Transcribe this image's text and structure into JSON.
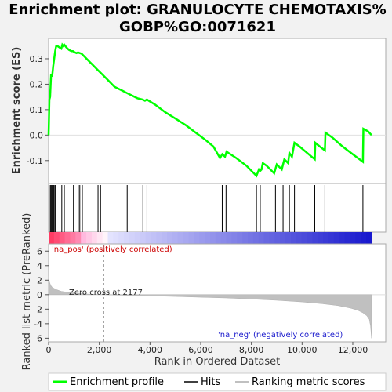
{
  "title_line1": "Enrichment plot: GRANULOCYTE CHEMOTAXIS%",
  "title_line2": "GOBP%GO:0071621",
  "chart_data": {
    "type": "line",
    "es_panel": {
      "ylabel": "Enrichment score (ES)",
      "ylim": [
        -0.19,
        0.38
      ],
      "yticks": [
        -0.1,
        0.0,
        0.1,
        0.2,
        0.3
      ],
      "ytick_labels": [
        "-0.1",
        "0.0",
        "0.1",
        "0.2",
        "0.3"
      ],
      "series_name": "Enrichment profile",
      "color": "#00ff00",
      "x": [
        0,
        30,
        60,
        100,
        140,
        180,
        220,
        260,
        300,
        350,
        420,
        500,
        540,
        580,
        620,
        700,
        800,
        900,
        960,
        1040,
        1100,
        1160,
        1240,
        1300,
        1400,
        1600,
        1800,
        1950,
        2100,
        2300,
        2600,
        2900,
        3100,
        3300,
        3500,
        3700,
        3800,
        3880,
        3950,
        4200,
        4600,
        5000,
        5400,
        5800,
        6200,
        6500,
        6760,
        6850,
        6960,
        7020,
        7100,
        7400,
        7800,
        8200,
        8300,
        8350,
        8400,
        8450,
        8600,
        8800,
        8900,
        9000,
        9200,
        9300,
        9450,
        9500,
        9600,
        9700,
        9900,
        10200,
        10500,
        10520,
        10700,
        10900,
        10920,
        11200,
        11600,
        12000,
        12400,
        12420,
        12600,
        12740
      ],
      "y": [
        0.0,
        0.14,
        0.15,
        0.24,
        0.23,
        0.27,
        0.3,
        0.33,
        0.35,
        0.35,
        0.345,
        0.34,
        0.355,
        0.35,
        0.355,
        0.345,
        0.335,
        0.33,
        0.33,
        0.325,
        0.322,
        0.325,
        0.322,
        0.32,
        0.31,
        0.29,
        0.27,
        0.255,
        0.24,
        0.22,
        0.19,
        0.175,
        0.165,
        0.155,
        0.145,
        0.14,
        0.135,
        0.14,
        0.135,
        0.12,
        0.09,
        0.065,
        0.04,
        0.01,
        -0.02,
        -0.045,
        -0.09,
        -0.075,
        -0.085,
        -0.065,
        -0.07,
        -0.09,
        -0.12,
        -0.16,
        -0.135,
        -0.14,
        -0.135,
        -0.11,
        -0.12,
        -0.14,
        -0.15,
        -0.115,
        -0.135,
        -0.095,
        -0.11,
        -0.07,
        -0.085,
        -0.03,
        -0.045,
        -0.07,
        -0.095,
        -0.03,
        -0.045,
        -0.06,
        0.01,
        -0.01,
        -0.045,
        -0.075,
        -0.105,
        0.025,
        0.015,
        0.0
      ]
    },
    "hits": [
      20,
      70,
      100,
      130,
      160,
      190,
      220,
      260,
      520,
      620,
      980,
      1170,
      1230,
      1330,
      1950,
      2050,
      3100,
      3720,
      3880,
      6850,
      7000,
      8200,
      8350,
      8950,
      9250,
      9500,
      9700,
      10500,
      10900,
      12400
    ],
    "metric_panel": {
      "ylabel": "Ranked list metric (PreRanked)",
      "ylim": [
        -6.5,
        7
      ],
      "yticks": [
        -6,
        -4,
        -2,
        0,
        2,
        4,
        6
      ],
      "ytick_labels": [
        "-6",
        "-4",
        "-2",
        "0",
        "2",
        "4",
        "6"
      ],
      "xlabel": "Rank in Ordered Dataset",
      "xticks": [
        0,
        2000,
        4000,
        6000,
        8000,
        10000,
        12000
      ],
      "xtick_labels": [
        "0",
        "2,000",
        "4,000",
        "6,000",
        "8,000",
        "10,000",
        "12,000"
      ],
      "xlim": [
        0,
        13300
      ],
      "n_genes": 12740,
      "zero_cross": 2177,
      "color": "#c0c0c0",
      "profile_x": [
        0,
        30,
        80,
        150,
        300,
        500,
        800,
        1200,
        1600,
        2000,
        2177,
        3000,
        4000,
        5000,
        6000,
        7000,
        8000,
        9000,
        10000,
        10800,
        11400,
        11900,
        12200,
        12400,
        12550,
        12650,
        12700,
        12740
      ],
      "profile_y": [
        2.6,
        1.8,
        1.3,
        1.0,
        0.7,
        0.45,
        0.3,
        0.15,
        0.07,
        0.02,
        0.0,
        -0.08,
        -0.16,
        -0.25,
        -0.35,
        -0.45,
        -0.6,
        -0.78,
        -1.0,
        -1.25,
        -1.5,
        -1.85,
        -2.15,
        -2.5,
        -2.9,
        -3.4,
        -4.3,
        -6.0
      ]
    },
    "annotations": {
      "pos": "'na_pos' (positively correlated)",
      "neg": "'na_neg' (negatively correlated)",
      "zero": "Zero cross at 2177"
    },
    "legend": [
      "Enrichment profile",
      "Hits",
      "Ranking metric scores"
    ]
  }
}
